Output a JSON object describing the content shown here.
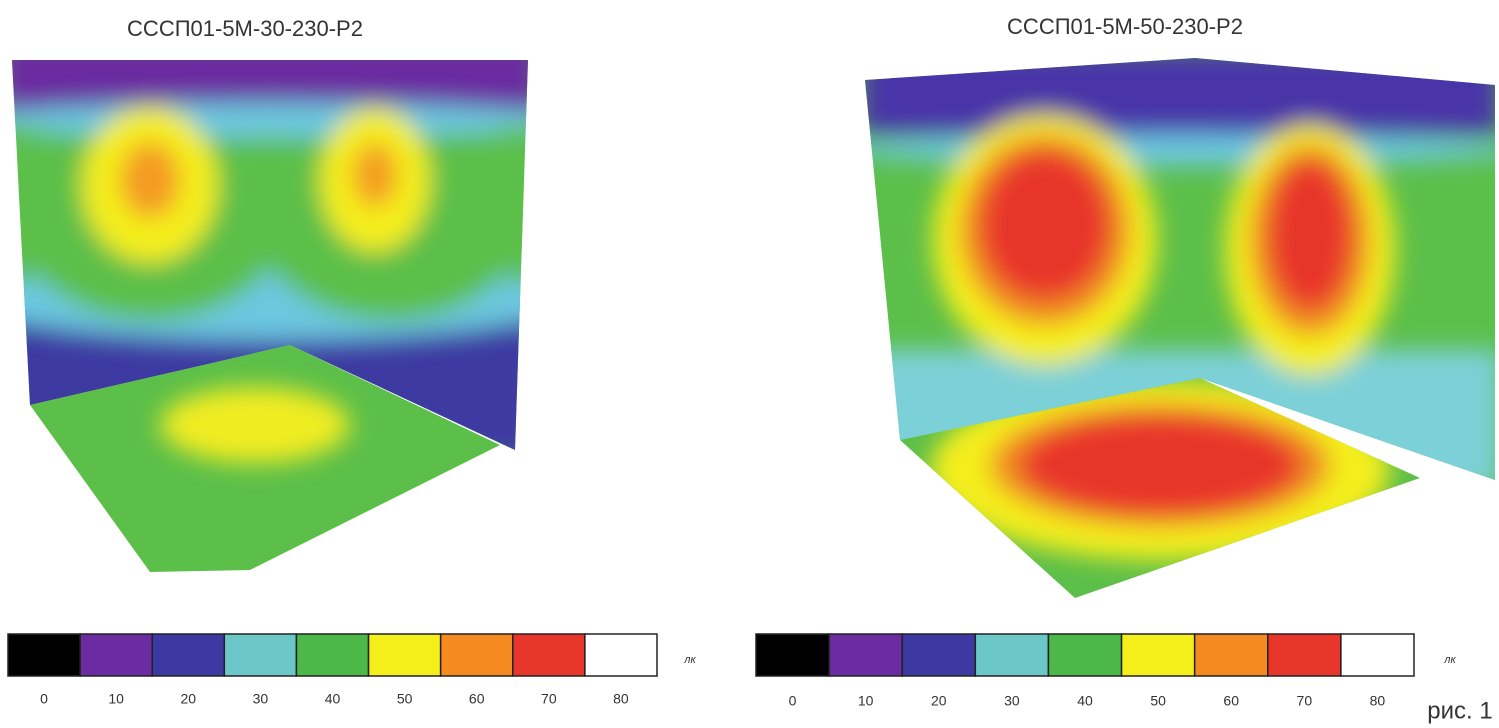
{
  "panels": [
    {
      "title": "СССП01-5М-30-230-Р2",
      "legend": {
        "unit": "лк",
        "labels": [
          0,
          10,
          20,
          30,
          40,
          50,
          60,
          70,
          80
        ],
        "colors": [
          "#000000",
          "#6a2ca0",
          "#3c3aa2",
          "#6cc8c8",
          "#4cb848",
          "#f4ee1a",
          "#f48a20",
          "#e8362a",
          "#ffffff"
        ]
      }
    },
    {
      "title": "СССП01-5М-50-230-Р2",
      "legend": {
        "unit": "лк",
        "labels": [
          0,
          10,
          20,
          30,
          40,
          50,
          60,
          70,
          80
        ],
        "colors": [
          "#000000",
          "#6a2ca0",
          "#3c3aa2",
          "#6cc8c8",
          "#4cb848",
          "#f4ee1a",
          "#f48a20",
          "#e8362a",
          "#ffffff"
        ]
      }
    }
  ],
  "caption": "рис. 1"
}
